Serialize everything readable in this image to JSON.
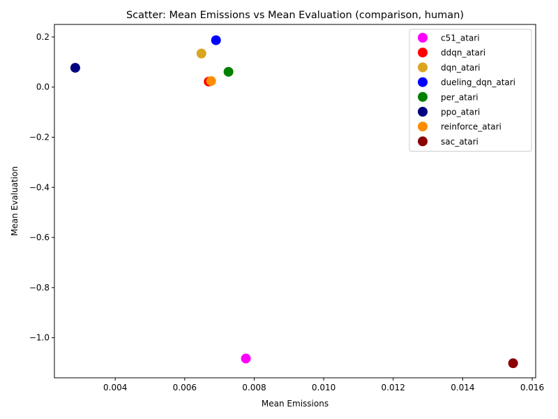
{
  "chart_data": {
    "type": "scatter",
    "title": "Scatter: Mean Emissions vs Mean Evaluation (comparison, human)",
    "xlabel": "Mean Emissions",
    "ylabel": "Mean Evaluation",
    "xlim": [
      0.00225,
      0.0161
    ],
    "ylim": [
      -1.16,
      0.25
    ],
    "xticks": [
      0.004,
      0.006,
      0.008,
      0.01,
      0.012,
      0.014,
      0.016
    ],
    "xtick_labels": [
      "0.004",
      "0.006",
      "0.008",
      "0.010",
      "0.012",
      "0.014",
      "0.016"
    ],
    "yticks": [
      0.2,
      0.0,
      -0.2,
      -0.4,
      -0.6,
      -0.8,
      -1.0
    ],
    "ytick_labels": [
      "0.2",
      "0.0",
      "−0.2",
      "−0.4",
      "−0.6",
      "−0.8",
      "−1.0"
    ],
    "grid": false,
    "legend_position": "top-right",
    "series": [
      {
        "name": "c51_atari",
        "color": "#ff00ff",
        "x": 0.00776,
        "y": -1.083
      },
      {
        "name": "ddqn_atari",
        "color": "#ff0000",
        "x": 0.00669,
        "y": 0.022
      },
      {
        "name": "dqn_atari",
        "color": "#daa520",
        "x": 0.00648,
        "y": 0.134
      },
      {
        "name": "dueling_dqn_atari",
        "color": "#0000ff",
        "x": 0.0069,
        "y": 0.187
      },
      {
        "name": "per_atari",
        "color": "#008000",
        "x": 0.00726,
        "y": 0.061
      },
      {
        "name": "ppo_atari",
        "color": "#000080",
        "x": 0.00285,
        "y": 0.077
      },
      {
        "name": "reinforce_atari",
        "color": "#ff8c00",
        "x": 0.00676,
        "y": 0.024
      },
      {
        "name": "sac_atari",
        "color": "#8b0000",
        "x": 0.01545,
        "y": -1.102
      }
    ]
  }
}
